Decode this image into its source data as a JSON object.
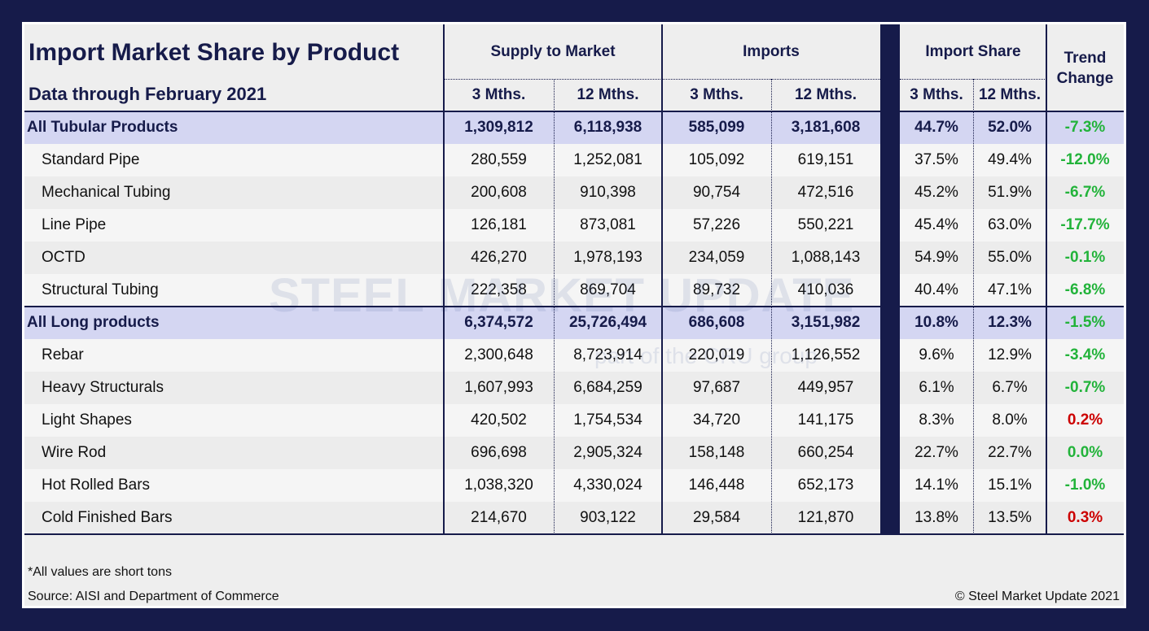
{
  "title": "Import Market Share by Product",
  "subtitle": "Data through February 2021",
  "groups": {
    "supply": "Supply to Market",
    "imports": "Imports",
    "share": "Import Share",
    "trend": "Trend Change"
  },
  "subheaders": {
    "m3": "3 Mths.",
    "m12": "12 Mths."
  },
  "watermark": {
    "main": "STEEL MARKET UPDATE",
    "sub": "part of the CRU group"
  },
  "colors": {
    "navy": "#161b4a",
    "highlight": "#d4d6f2",
    "positive_trend": "#22b33a",
    "negative_trend": "#cc0000"
  },
  "rows": [
    {
      "label": "All Tubular Products",
      "total": true,
      "s3": "1,309,812",
      "s12": "6,118,938",
      "i3": "585,099",
      "i12": "3,181,608",
      "sh3": "44.7%",
      "sh12": "52.0%",
      "trend": "-7.3%",
      "dir": "good"
    },
    {
      "label": "Standard Pipe",
      "s3": "280,559",
      "s12": "1,252,081",
      "i3": "105,092",
      "i12": "619,151",
      "sh3": "37.5%",
      "sh12": "49.4%",
      "trend": "-12.0%",
      "dir": "good"
    },
    {
      "label": "Mechanical Tubing",
      "s3": "200,608",
      "s12": "910,398",
      "i3": "90,754",
      "i12": "472,516",
      "sh3": "45.2%",
      "sh12": "51.9%",
      "trend": "-6.7%",
      "dir": "good"
    },
    {
      "label": "Line Pipe",
      "s3": "126,181",
      "s12": "873,081",
      "i3": "57,226",
      "i12": "550,221",
      "sh3": "45.4%",
      "sh12": "63.0%",
      "trend": "-17.7%",
      "dir": "good"
    },
    {
      "label": "OCTD",
      "s3": "426,270",
      "s12": "1,978,193",
      "i3": "234,059",
      "i12": "1,088,143",
      "sh3": "54.9%",
      "sh12": "55.0%",
      "trend": "-0.1%",
      "dir": "good"
    },
    {
      "label": "Structural Tubing",
      "s3": "222,358",
      "s12": "869,704",
      "i3": "89,732",
      "i12": "410,036",
      "sh3": "40.4%",
      "sh12": "47.1%",
      "trend": "-6.8%",
      "dir": "good"
    },
    {
      "label": "All Long products",
      "total": true,
      "s3": "6,374,572",
      "s12": "25,726,494",
      "i3": "686,608",
      "i12": "3,151,982",
      "sh3": "10.8%",
      "sh12": "12.3%",
      "trend": "-1.5%",
      "dir": "good"
    },
    {
      "label": "Rebar",
      "s3": "2,300,648",
      "s12": "8,723,914",
      "i3": "220,019",
      "i12": "1,126,552",
      "sh3": "9.6%",
      "sh12": "12.9%",
      "trend": "-3.4%",
      "dir": "good"
    },
    {
      "label": "Heavy Structurals",
      "s3": "1,607,993",
      "s12": "6,684,259",
      "i3": "97,687",
      "i12": "449,957",
      "sh3": "6.1%",
      "sh12": "6.7%",
      "trend": "-0.7%",
      "dir": "good"
    },
    {
      "label": "Light Shapes",
      "s3": "420,502",
      "s12": "1,754,534",
      "i3": "34,720",
      "i12": "141,175",
      "sh3": "8.3%",
      "sh12": "8.0%",
      "trend": "0.2%",
      "dir": "bad"
    },
    {
      "label": "Wire Rod",
      "s3": "696,698",
      "s12": "2,905,324",
      "i3": "158,148",
      "i12": "660,254",
      "sh3": "22.7%",
      "sh12": "22.7%",
      "trend": "0.0%",
      "dir": "good"
    },
    {
      "label": "Hot Rolled Bars",
      "s3": "1,038,320",
      "s12": "4,330,024",
      "i3": "146,448",
      "i12": "652,173",
      "sh3": "14.1%",
      "sh12": "15.1%",
      "trend": "-1.0%",
      "dir": "good"
    },
    {
      "label": "Cold Finished Bars",
      "s3": "214,670",
      "s12": "903,122",
      "i3": "29,584",
      "i12": "121,870",
      "sh3": "13.8%",
      "sh12": "13.5%",
      "trend": "0.3%",
      "dir": "bad"
    }
  ],
  "footer": {
    "note": "*All values are short tons",
    "source": "Source: AISI and Department of Commerce",
    "copyright": "© Steel Market Update 2021"
  }
}
